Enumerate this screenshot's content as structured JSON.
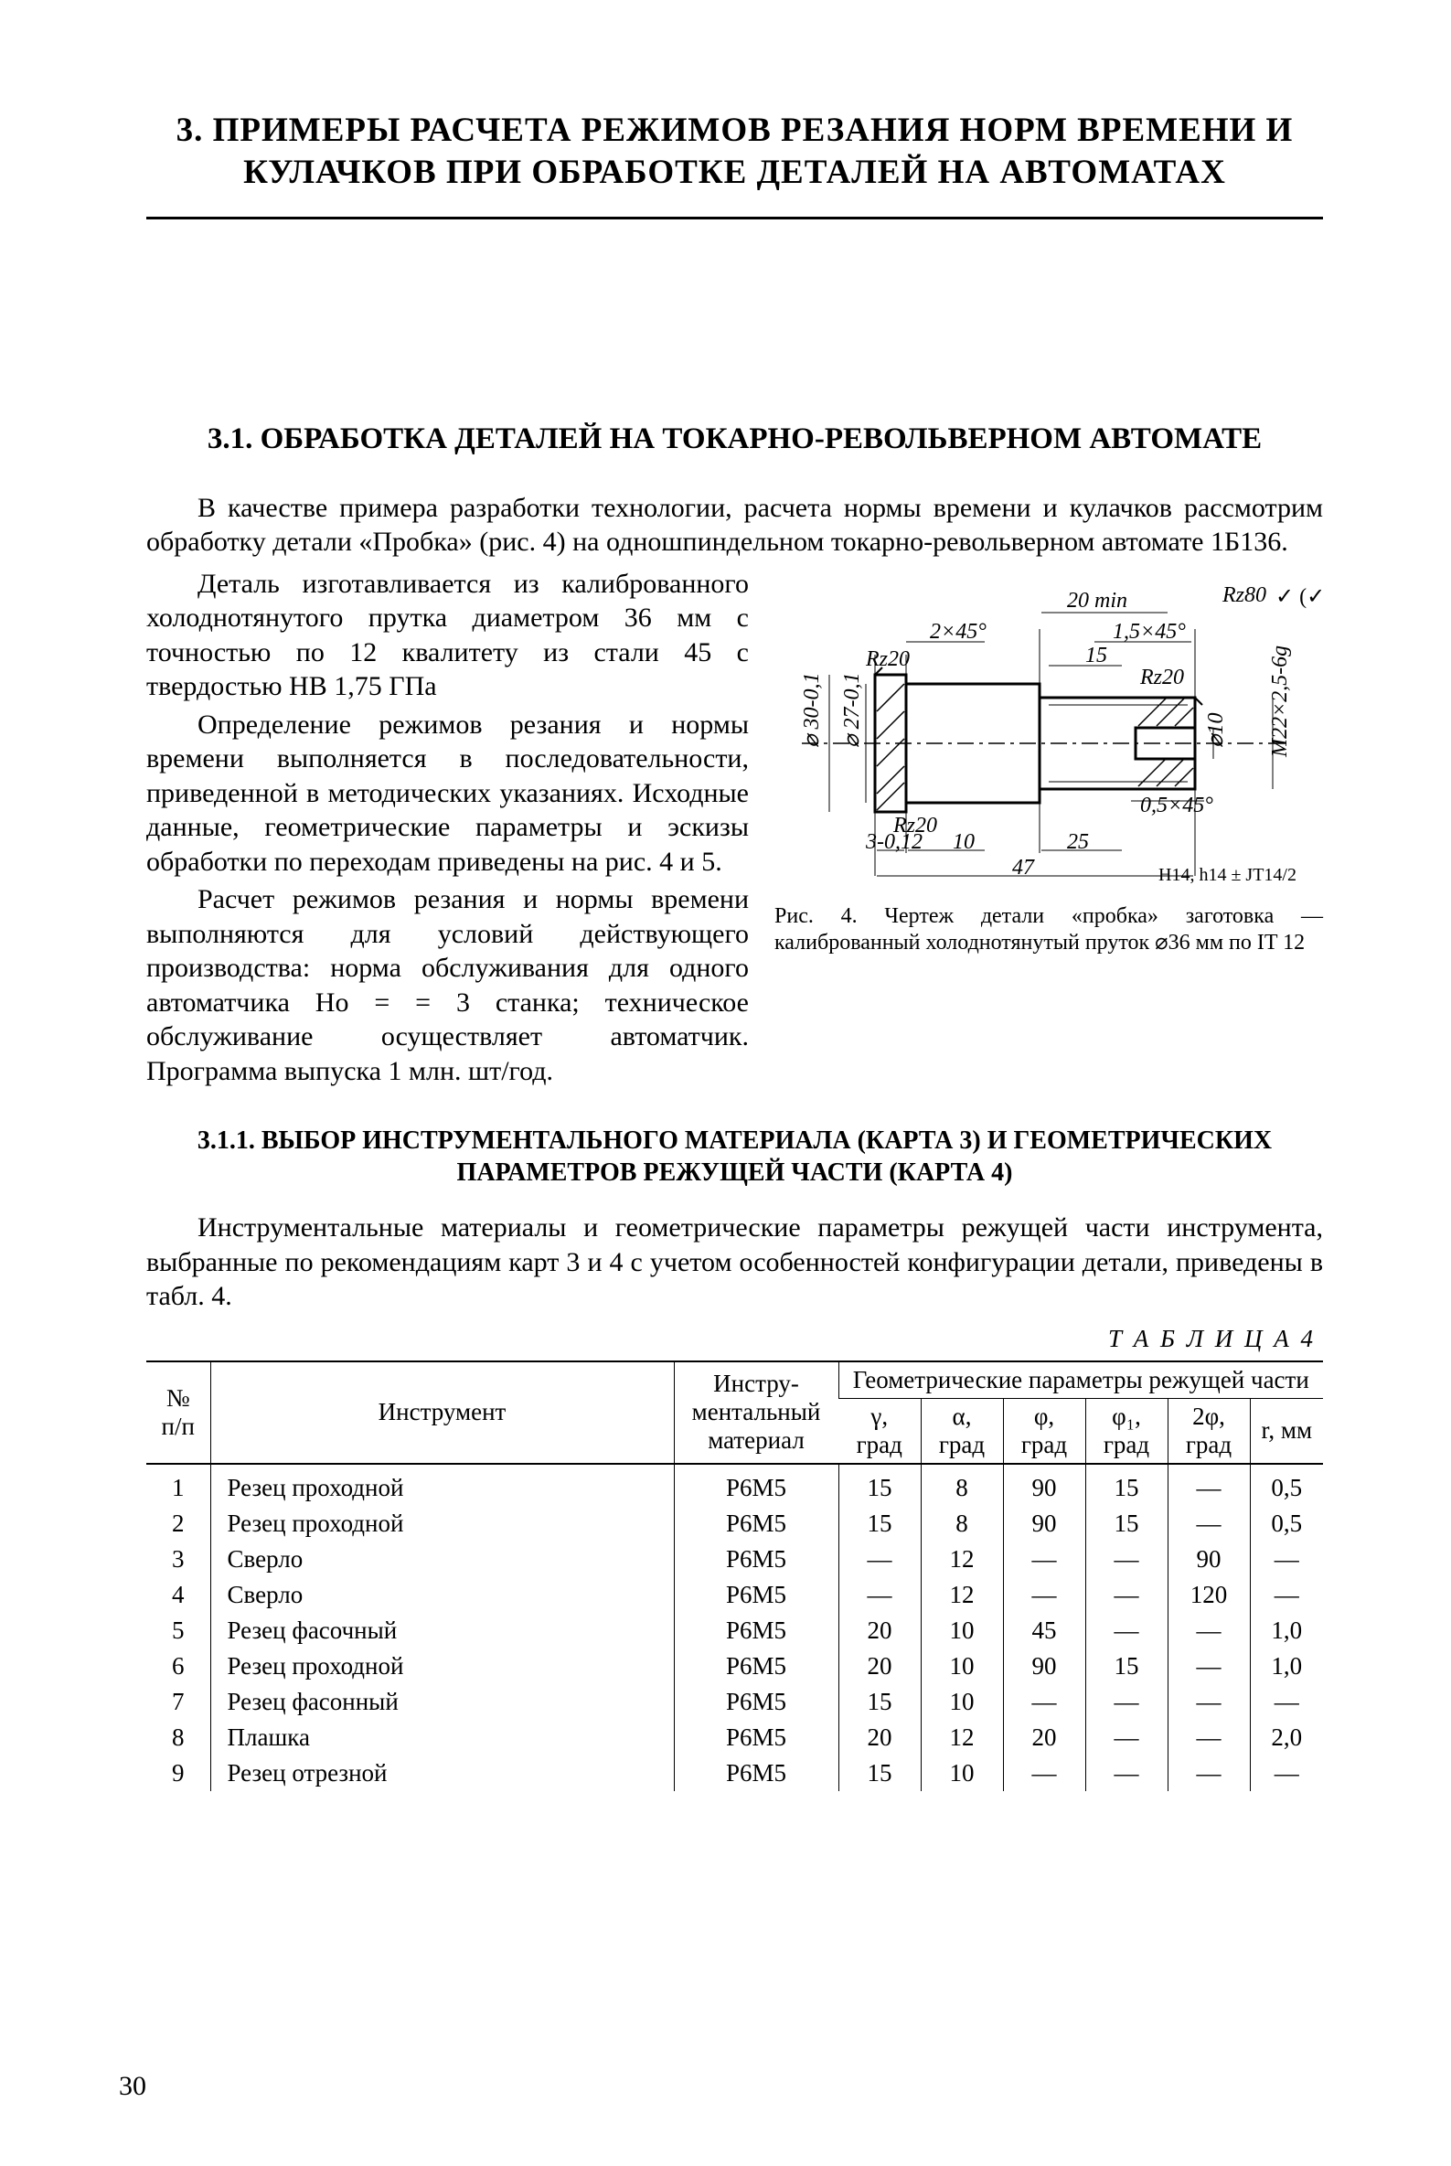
{
  "chapter_title": "3. ПРИМЕРЫ РАСЧЕТА РЕЖИМОВ РЕЗАНИЯ НОРМ ВРЕМЕНИ И КУЛАЧКОВ ПРИ ОБРАБОТКЕ ДЕТАЛЕЙ НА АВТОМАТАХ",
  "section_title": "3.1. ОБРАБОТКА ДЕТАЛЕЙ НА ТОКАРНО-РЕВОЛЬВЕРНОМ АВТОМАТЕ",
  "intro_para": "В качестве примера разработки технологии, расчета нормы времени и кулачков рассмотрим обработку детали «Пробка» (рис. 4) на одношпиндельном токарно-револьверном автомате 1Б136.",
  "para2": "Деталь изготавливается из калиброванного холоднотянутого прутка диаметром 36 мм с точностью по 12 квалитету из стали 45 с твердостью HB 1,75 ГПа",
  "para3": "Определение режимов резания и нормы времени выполняется в последовательности, приведенной в методических указаниях. Исходные данные, геометрические параметры и эскизы обработки по переходам приведены на рис. 4 и 5.",
  "para4": "Расчет режимов резания и нормы времени выполняются для условий действующего производства: норма обслуживания для одного автоматчика Hо = = 3 станка; техническое обслуживание осуществляет автоматчик. Программа выпуска 1 млн. шт/год.",
  "figure": {
    "labels": {
      "top_dim1": "20 min",
      "top_rz80": "Rz80",
      "chamf_2x45": "2×45°",
      "chamf_15x45": "1,5×45°",
      "rz20_l": "Rz20",
      "rz20_r": "Rz20",
      "d30": "⌀ 30-0,1",
      "d27": "⌀ 27-0,1",
      "d10": "⌀10",
      "m22": "M22×2,5-6g",
      "chamf_05x45": "0,5×45°",
      "rz20_b": "Rz20",
      "dim3": "3-0,12",
      "dim10": "10",
      "dim25": "25",
      "dim15": "15",
      "dim47": "47",
      "tol": "H14, h14 ± JT14/2"
    },
    "caption": "Рис. 4. Чертеж детали «пробка» заготовка — калиброванный холоднотянутый пруток ⌀36 мм по IT 12"
  },
  "subsection_title": "3.1.1. ВЫБОР ИНСТРУМЕНТАЛЬНОГО МАТЕРИАЛА (КАРТА 3) И ГЕОМЕТРИЧЕСКИХ ПАРАМЕТРОВ РЕЖУЩЕЙ ЧАСТИ (КАРТА 4)",
  "para5": "Инструментальные материалы и геометрические параметры режущей части инструмента, выбранные по рекомендациям карт 3 и 4 с учетом особенностей конфигурации детали, приведены в табл. 4.",
  "table_label": "Т А Б Л И Ц А 4",
  "table": {
    "head": {
      "c1": "№ п/п",
      "c2": "Инструмент",
      "c3": "Инстру­ментальный материал",
      "c4": "Геометрические параметры режущей части",
      "s1": "γ, град",
      "s2": "α, град",
      "s3": "φ, град",
      "s4": "φ₁, град",
      "s5": "2φ, град",
      "s6": "r, мм"
    },
    "rows": [
      {
        "n": "1",
        "tool": "Резец проходной",
        "mat": "Р6М5",
        "g": "15",
        "a": "8",
        "f": "90",
        "f1": "15",
        "tf": "—",
        "r": "0,5"
      },
      {
        "n": "2",
        "tool": "Резец проходной",
        "mat": "Р6М5",
        "g": "15",
        "a": "8",
        "f": "90",
        "f1": "15",
        "tf": "—",
        "r": "0,5"
      },
      {
        "n": "3",
        "tool": "Сверло",
        "mat": "Р6М5",
        "g": "—",
        "a": "12",
        "f": "—",
        "f1": "—",
        "tf": "90",
        "r": "—"
      },
      {
        "n": "4",
        "tool": "Сверло",
        "mat": "Р6М5",
        "g": "—",
        "a": "12",
        "f": "—",
        "f1": "—",
        "tf": "120",
        "r": "—"
      },
      {
        "n": "5",
        "tool": "Резец фасочный",
        "mat": "Р6М5",
        "g": "20",
        "a": "10",
        "f": "45",
        "f1": "—",
        "tf": "—",
        "r": "1,0"
      },
      {
        "n": "6",
        "tool": "Резец проходной",
        "mat": "Р6М5",
        "g": "20",
        "a": "10",
        "f": "90",
        "f1": "15",
        "tf": "—",
        "r": "1,0"
      },
      {
        "n": "7",
        "tool": "Резец фасонный",
        "mat": "Р6М5",
        "g": "15",
        "a": "10",
        "f": "—",
        "f1": "—",
        "tf": "—",
        "r": "—"
      },
      {
        "n": "8",
        "tool": "Плашка",
        "mat": "Р6М5",
        "g": "20",
        "a": "12",
        "f": "20",
        "f1": "—",
        "tf": "—",
        "r": "2,0"
      },
      {
        "n": "9",
        "tool": "Резец отрезной",
        "mat": "Р6М5",
        "g": "15",
        "a": "10",
        "f": "—",
        "f1": "—",
        "tf": "—",
        "r": "—"
      }
    ]
  },
  "page_number": "30"
}
